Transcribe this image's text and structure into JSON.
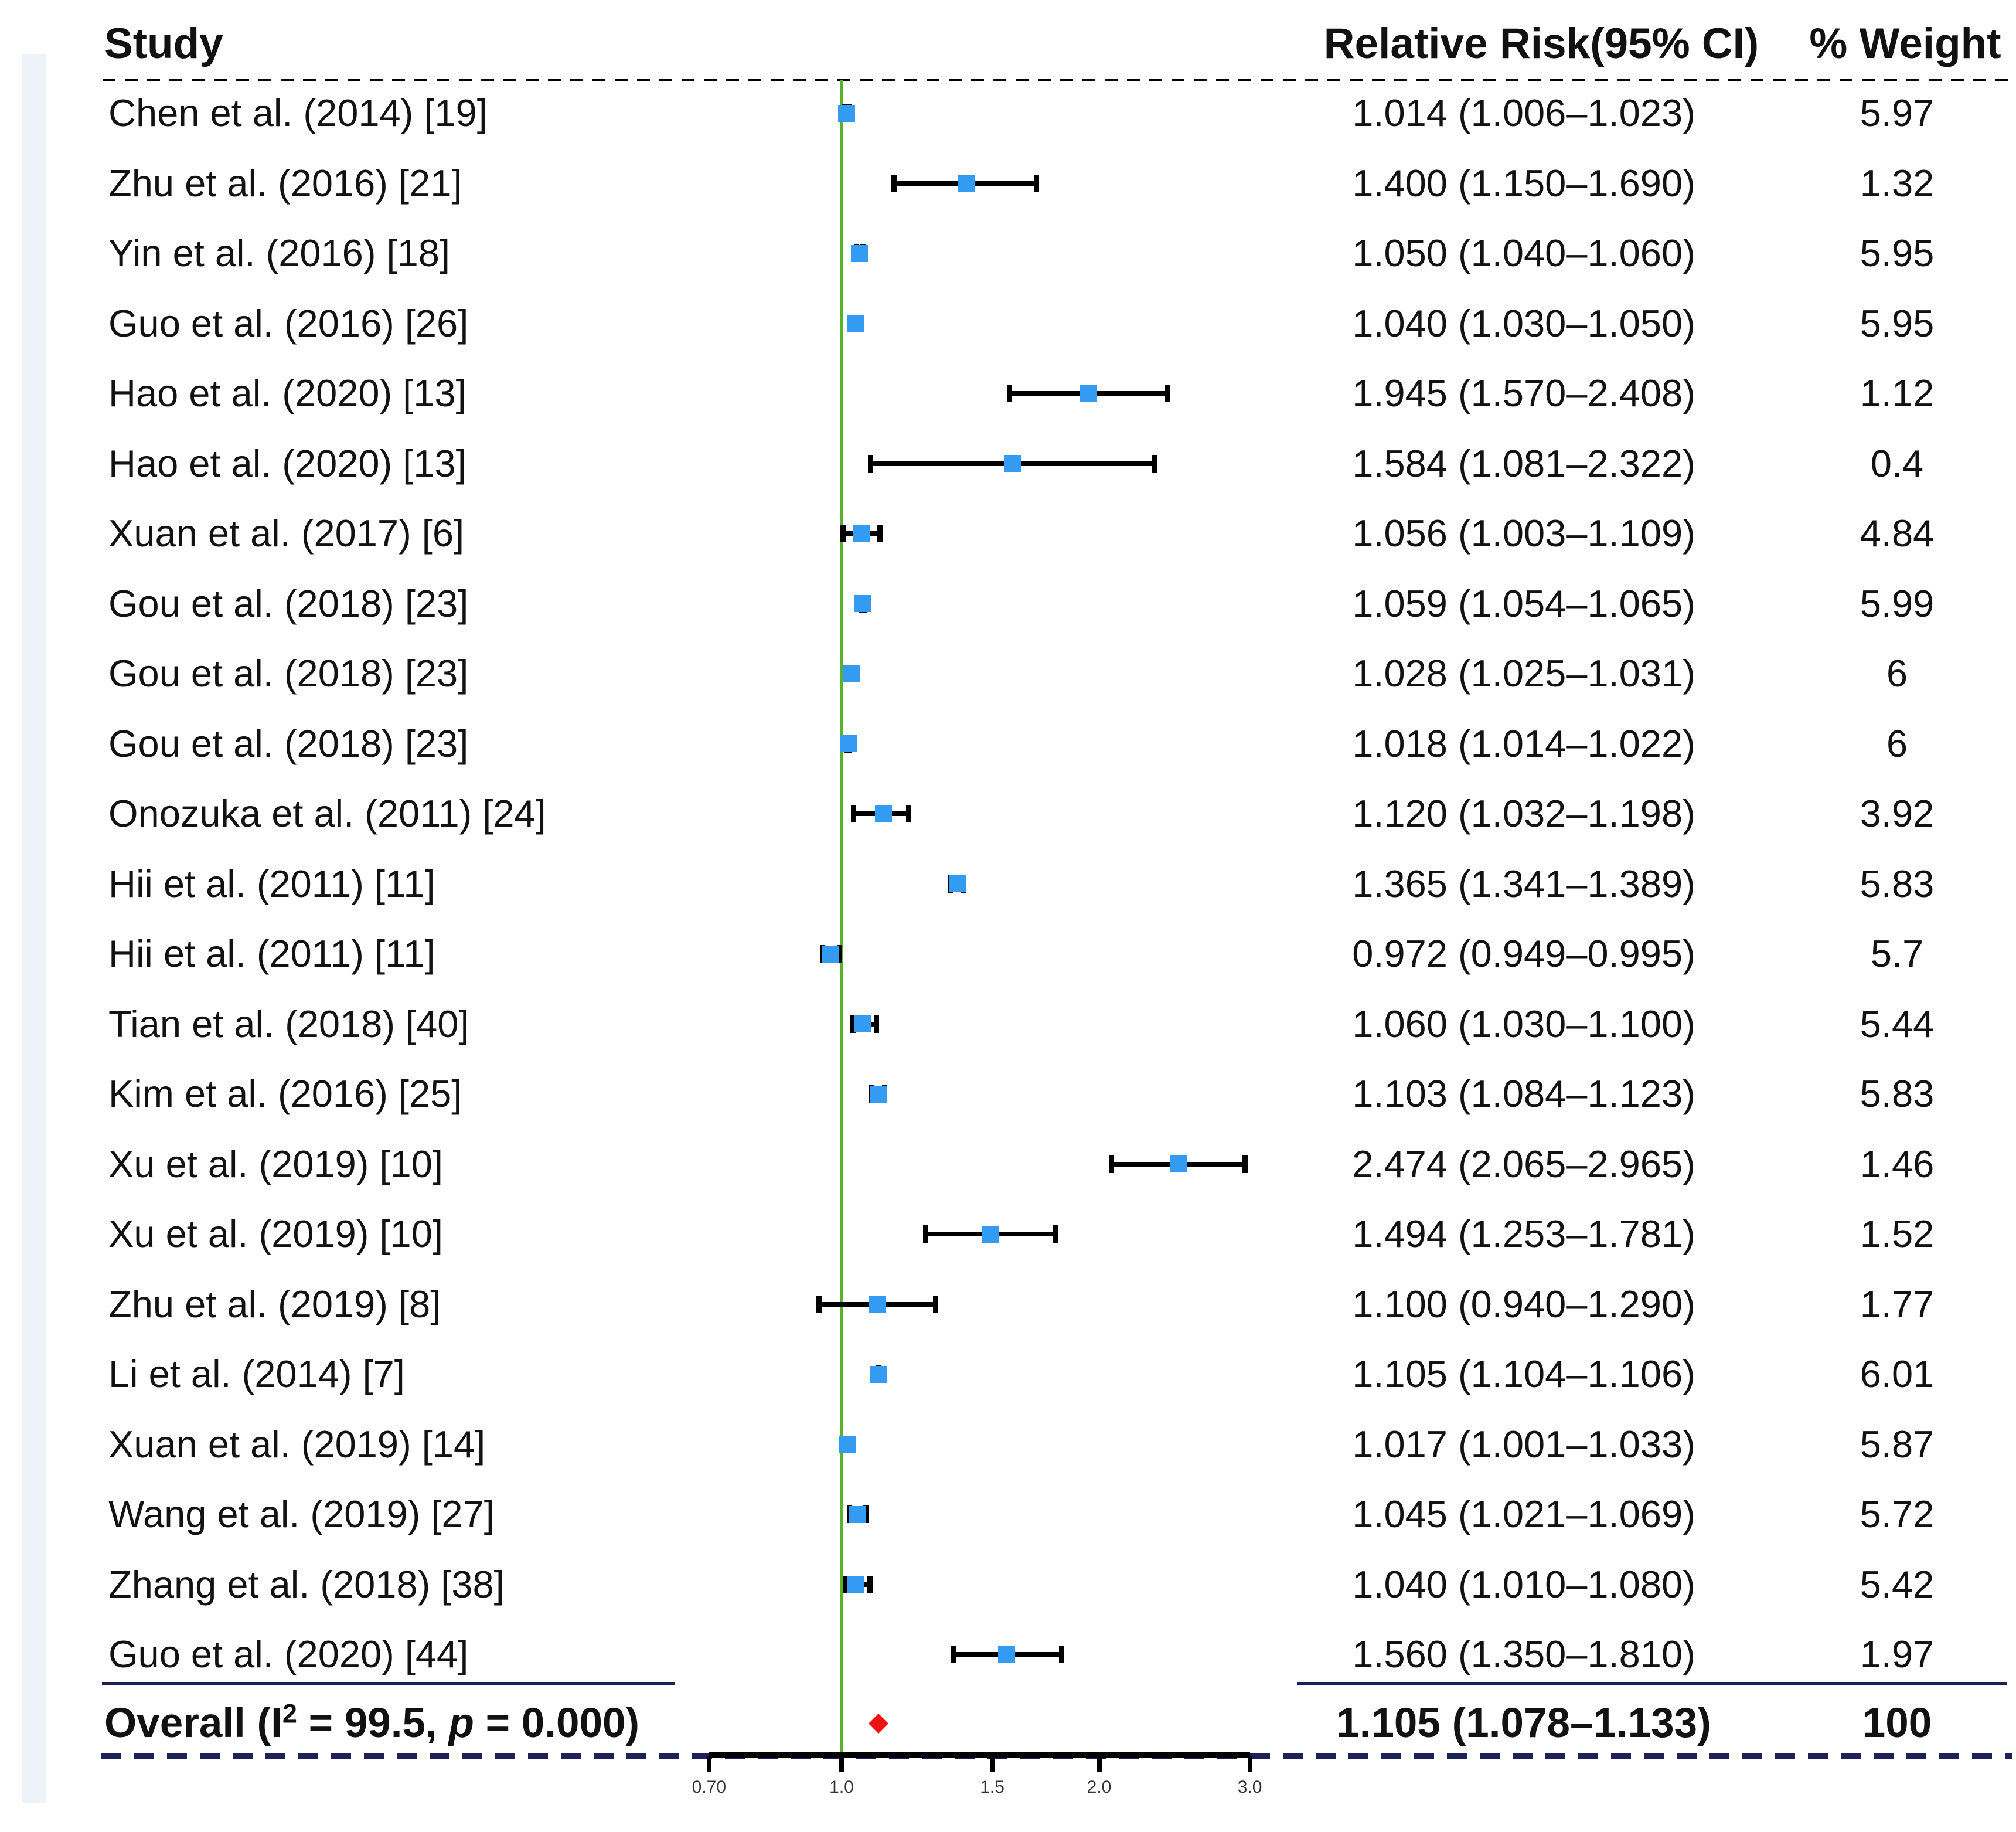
{
  "header": {
    "study": "Study",
    "relative_risk": "Relative Risk(95% CI)",
    "weight": "% Weight"
  },
  "chart_data": {
    "type": "forest_plot",
    "effect_measure": "Relative Risk",
    "x_axis": {
      "scale": "log10",
      "ticks": [
        0.7,
        1.0,
        1.5,
        2.0,
        3.0
      ],
      "tick_labels": [
        "0.70",
        "1.0",
        "1.5",
        "2.0",
        "3.0"
      ],
      "range": [
        0.7,
        3.0
      ],
      "reference_line": 1.0
    },
    "legend_position": "none",
    "grid": false,
    "studies": [
      {
        "label": "Chen et al. (2014) [19]",
        "rr": 1.014,
        "ci_low": 1.006,
        "ci_high": 1.023,
        "rr_text": "1.014 (1.006–1.023)",
        "weight": "5.97"
      },
      {
        "label": "Zhu et al. (2016) [21]",
        "rr": 1.4,
        "ci_low": 1.15,
        "ci_high": 1.69,
        "rr_text": "1.400 (1.150–1.690)",
        "weight": "1.32"
      },
      {
        "label": "Yin et al. (2016) [18]",
        "rr": 1.05,
        "ci_low": 1.04,
        "ci_high": 1.06,
        "rr_text": "1.050 (1.040–1.060)",
        "weight": "5.95"
      },
      {
        "label": "Guo et al. (2016) [26]",
        "rr": 1.04,
        "ci_low": 1.03,
        "ci_high": 1.05,
        "rr_text": "1.040 (1.030–1.050)",
        "weight": "5.95"
      },
      {
        "label": "Hao et al. (2020) [13]",
        "rr": 1.945,
        "ci_low": 1.57,
        "ci_high": 2.408,
        "rr_text": "1.945 (1.570–2.408)",
        "weight": "1.12"
      },
      {
        "label": "Hao et al. (2020) [13]",
        "rr": 1.584,
        "ci_low": 1.081,
        "ci_high": 2.322,
        "rr_text": "1.584 (1.081–2.322)",
        "weight": "0.4"
      },
      {
        "label": "Xuan et al. (2017) [6]",
        "rr": 1.056,
        "ci_low": 1.003,
        "ci_high": 1.109,
        "rr_text": "1.056 (1.003–1.109)",
        "weight": "4.84"
      },
      {
        "label": "Gou et al. (2018) [23]",
        "rr": 1.059,
        "ci_low": 1.054,
        "ci_high": 1.065,
        "rr_text": "1.059 (1.054–1.065)",
        "weight": "5.99"
      },
      {
        "label": "Gou et al. (2018) [23]",
        "rr": 1.028,
        "ci_low": 1.025,
        "ci_high": 1.031,
        "rr_text": "1.028 (1.025–1.031)",
        "weight": "6"
      },
      {
        "label": "Gou et al. (2018) [23]",
        "rr": 1.018,
        "ci_low": 1.014,
        "ci_high": 1.022,
        "rr_text": "1.018 (1.014–1.022)",
        "weight": "6"
      },
      {
        "label": "Onozuka et al. (2011) [24]",
        "rr": 1.12,
        "ci_low": 1.032,
        "ci_high": 1.198,
        "rr_text": "1.120 (1.032–1.198)",
        "weight": "3.92"
      },
      {
        "label": "Hii et al. (2011) [11]",
        "rr": 1.365,
        "ci_low": 1.341,
        "ci_high": 1.389,
        "rr_text": "1.365 (1.341–1.389)",
        "weight": "5.83"
      },
      {
        "label": "Hii et al. (2011) [11]",
        "rr": 0.972,
        "ci_low": 0.949,
        "ci_high": 0.995,
        "rr_text": "0.972 (0.949–0.995)",
        "weight": "5.7"
      },
      {
        "label": "Tian et al. (2018) [40]",
        "rr": 1.06,
        "ci_low": 1.03,
        "ci_high": 1.1,
        "rr_text": "1.060 (1.030–1.100)",
        "weight": "5.44"
      },
      {
        "label": "Kim et al. (2016) [25]",
        "rr": 1.103,
        "ci_low": 1.084,
        "ci_high": 1.123,
        "rr_text": "1.103 (1.084–1.123)",
        "weight": "5.83"
      },
      {
        "label": "Xu et al. (2019) [10]",
        "rr": 2.474,
        "ci_low": 2.065,
        "ci_high": 2.965,
        "rr_text": "2.474 (2.065–2.965)",
        "weight": "1.46"
      },
      {
        "label": "Xu et al. (2019) [10]",
        "rr": 1.494,
        "ci_low": 1.253,
        "ci_high": 1.781,
        "rr_text": "1.494 (1.253–1.781)",
        "weight": "1.52"
      },
      {
        "label": "Zhu et al. (2019) [8]",
        "rr": 1.1,
        "ci_low": 0.94,
        "ci_high": 1.29,
        "rr_text": "1.100 (0.940–1.290)",
        "weight": "1.77"
      },
      {
        "label": "Li et al. (2014) [7]",
        "rr": 1.105,
        "ci_low": 1.104,
        "ci_high": 1.106,
        "rr_text": "1.105 (1.104–1.106)",
        "weight": "6.01"
      },
      {
        "label": "Xuan et al. (2019) [14]",
        "rr": 1.017,
        "ci_low": 1.001,
        "ci_high": 1.033,
        "rr_text": "1.017 (1.001–1.033)",
        "weight": "5.87"
      },
      {
        "label": "Wang et al. (2019) [27]",
        "rr": 1.045,
        "ci_low": 1.021,
        "ci_high": 1.069,
        "rr_text": "1.045 (1.021–1.069)",
        "weight": "5.72"
      },
      {
        "label": "Zhang et al. (2018) [38]",
        "rr": 1.04,
        "ci_low": 1.01,
        "ci_high": 1.08,
        "rr_text": "1.040 (1.010–1.080)",
        "weight": "5.42"
      },
      {
        "label": "Guo et al. (2020) [44]",
        "rr": 1.56,
        "ci_low": 1.35,
        "ci_high": 1.81,
        "rr_text": "1.560 (1.350–1.810)",
        "weight": "1.97"
      }
    ],
    "overall": {
      "label_parts": {
        "pre": "Overall (I",
        "sup": "2",
        "mid": " = 99.5, ",
        "pvar": "p",
        "post": " = 0.000)"
      },
      "heterogeneity_I2": "99.5",
      "p_value": "0.000",
      "rr": 1.105,
      "ci_low": 1.078,
      "ci_high": 1.133,
      "rr_text": "1.105 (1.078–1.133)",
      "weight": "100"
    }
  },
  "colors": {
    "marker_blue": "#349bf3",
    "reference_green": "#58b32a",
    "diamond_red": "#ee1111",
    "separator_navy": "#1d2157",
    "axis_black": "#000000",
    "text": "#121212",
    "left_strip": "#eef3f9"
  }
}
